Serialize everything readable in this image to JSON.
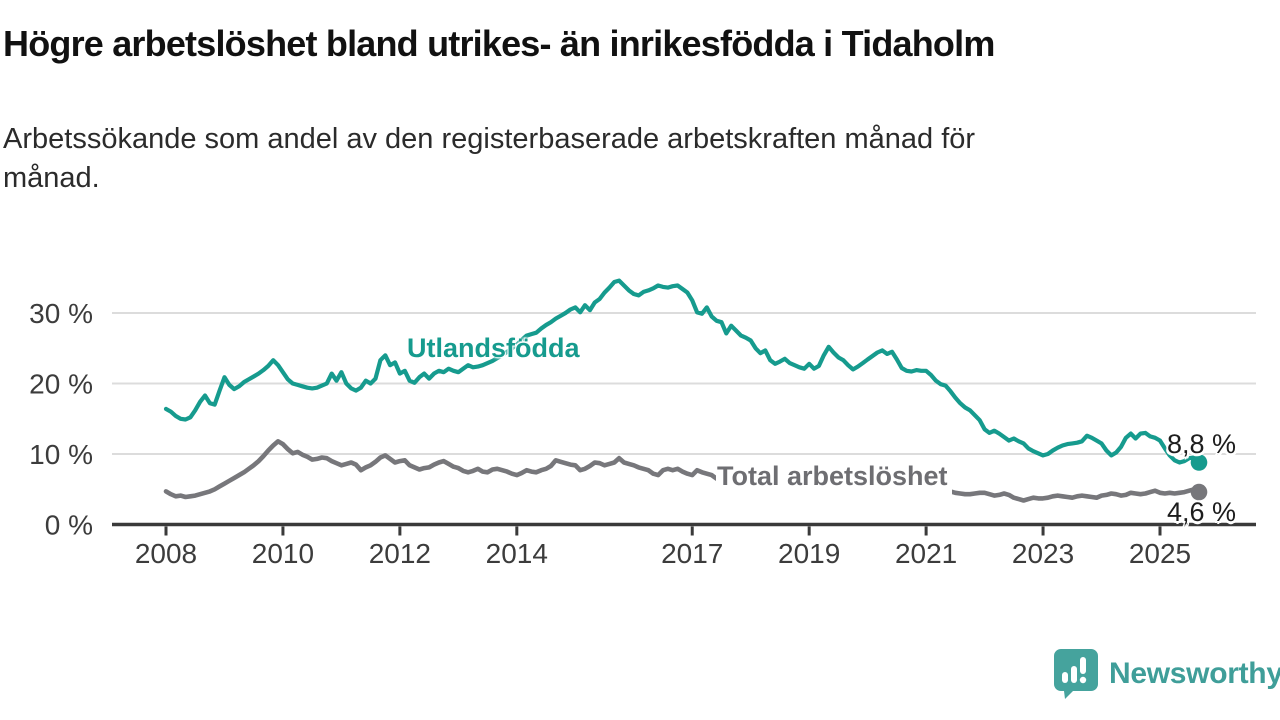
{
  "title": "Högre arbetslöshet bland utrikes- än inrikesfödda i Tidaholm",
  "subtitle_lines": {
    "line1": "Arbetssökande som andel av den registerbaserade arbetskraften månad för",
    "line2": "månad."
  },
  "branding": {
    "logo_text": "Newsworthy",
    "logo_color": "#3f9e99",
    "icon_color": "#45a39d"
  },
  "chart_data": {
    "type": "line",
    "title": "Högre arbetslöshet bland utrikes- än inrikesfödda i Tidaholm",
    "x_axis": {
      "start_year": 2008,
      "unit": "month",
      "tick_years": [
        2008,
        2010,
        2012,
        2014,
        2017,
        2019,
        2021,
        2023,
        2025
      ],
      "tick_labels": [
        "2008",
        "2010",
        "2012",
        "2014",
        "2017",
        "2019",
        "2021",
        "2023",
        "2025"
      ]
    },
    "y_axis": {
      "values": [
        0,
        10,
        20,
        30
      ],
      "tick_labels": [
        "0 %",
        "10 %",
        "20 %",
        "30 %"
      ],
      "ylim": [
        0,
        36
      ],
      "grid": true
    },
    "legend_position": "inline-labels",
    "series": [
      {
        "name": "Utlandsfödda",
        "color": "#169b8e",
        "end_label": "8,8 %",
        "end_value": 8.8,
        "values": [
          16.4,
          16.0,
          15.4,
          15.0,
          14.9,
          15.2,
          16.2,
          17.4,
          18.3,
          17.2,
          17.0,
          19.0,
          20.9,
          19.8,
          19.2,
          19.6,
          20.2,
          20.6,
          21.0,
          21.4,
          21.9,
          22.5,
          23.3,
          22.6,
          21.6,
          20.6,
          20.0,
          19.8,
          19.6,
          19.4,
          19.3,
          19.4,
          19.7,
          20.0,
          21.4,
          20.4,
          21.6,
          20.0,
          19.3,
          19.0,
          19.4,
          20.4,
          20.0,
          20.7,
          23.3,
          24.0,
          22.6,
          23.0,
          21.4,
          21.8,
          20.4,
          20.1,
          20.9,
          21.4,
          20.7,
          21.4,
          21.8,
          21.6,
          22.1,
          21.8,
          21.6,
          22.1,
          22.6,
          22.3,
          22.4,
          22.6,
          22.9,
          23.2,
          23.6,
          24.0,
          24.5,
          25.0,
          25.5,
          26.2,
          26.8,
          27.0,
          27.2,
          27.8,
          28.3,
          28.7,
          29.2,
          29.6,
          30.0,
          30.5,
          30.8,
          30.1,
          31.1,
          30.4,
          31.5,
          32.0,
          32.9,
          33.6,
          34.4,
          34.6,
          33.9,
          33.2,
          32.7,
          32.5,
          33.0,
          33.2,
          33.5,
          33.9,
          33.7,
          33.6,
          33.8,
          33.9,
          33.4,
          32.9,
          31.8,
          30.1,
          29.9,
          30.8,
          29.5,
          28.9,
          28.7,
          27.1,
          28.2,
          27.5,
          26.8,
          26.5,
          26.1,
          25.0,
          24.3,
          24.7,
          23.3,
          22.8,
          23.1,
          23.5,
          22.9,
          22.6,
          22.3,
          22.1,
          22.8,
          22.1,
          22.5,
          24.0,
          25.2,
          24.4,
          23.7,
          23.3,
          22.6,
          22.0,
          22.4,
          22.9,
          23.4,
          23.9,
          24.4,
          24.7,
          24.2,
          24.5,
          23.4,
          22.2,
          21.8,
          21.7,
          21.9,
          21.8,
          21.8,
          21.2,
          20.4,
          19.9,
          19.7,
          18.9,
          18.0,
          17.2,
          16.6,
          16.2,
          15.5,
          14.8,
          13.5,
          13.0,
          13.3,
          12.9,
          12.4,
          11.9,
          12.2,
          11.8,
          11.5,
          10.8,
          10.4,
          10.1,
          9.8,
          10.0,
          10.5,
          10.9,
          11.2,
          11.4,
          11.5,
          11.6,
          11.8,
          12.6,
          12.3,
          11.9,
          11.5,
          10.5,
          9.8,
          10.2,
          11.0,
          12.3,
          12.9,
          12.2,
          12.9,
          13.0,
          12.5,
          12.3,
          11.9,
          10.8,
          9.8,
          9.1,
          8.8,
          9.0,
          9.4,
          9.5,
          8.8
        ]
      },
      {
        "name": "Total arbetslöshet",
        "color": "#77777b",
        "end_label": "4,6 %",
        "end_value": 4.6,
        "values": [
          4.7,
          4.3,
          4.0,
          4.1,
          3.9,
          4.0,
          4.1,
          4.3,
          4.5,
          4.7,
          5.0,
          5.4,
          5.8,
          6.2,
          6.6,
          7.0,
          7.4,
          7.9,
          8.4,
          9.0,
          9.7,
          10.5,
          11.2,
          11.8,
          11.4,
          10.7,
          10.1,
          10.3,
          9.9,
          9.6,
          9.2,
          9.3,
          9.5,
          9.4,
          9.0,
          8.7,
          8.4,
          8.6,
          8.8,
          8.5,
          7.7,
          8.1,
          8.4,
          8.9,
          9.5,
          9.8,
          9.3,
          8.8,
          9.0,
          9.1,
          8.4,
          8.1,
          7.8,
          8.0,
          8.1,
          8.5,
          8.8,
          9.0,
          8.6,
          8.2,
          8.0,
          7.6,
          7.4,
          7.6,
          7.9,
          7.5,
          7.4,
          7.8,
          7.9,
          7.7,
          7.5,
          7.2,
          7.0,
          7.3,
          7.7,
          7.5,
          7.4,
          7.7,
          7.9,
          8.3,
          9.1,
          8.9,
          8.7,
          8.5,
          8.4,
          7.7,
          7.9,
          8.3,
          8.8,
          8.7,
          8.4,
          8.6,
          8.8,
          9.4,
          8.8,
          8.6,
          8.4,
          8.1,
          7.9,
          7.7,
          7.2,
          7.0,
          7.7,
          7.9,
          7.7,
          7.9,
          7.5,
          7.2,
          7.0,
          7.7,
          7.4,
          7.2,
          7.0,
          6.5,
          6.6,
          6.8,
          6.5,
          6.3,
          6.2,
          6.1,
          6.0,
          5.9,
          5.8,
          5.7,
          5.6,
          5.5,
          5.5,
          5.4,
          5.4,
          5.3,
          5.3,
          5.2,
          5.2,
          5.1,
          5.1,
          5.2,
          5.3,
          5.2,
          5.1,
          5.0,
          5.0,
          5.1,
          5.2,
          5.3,
          5.4,
          5.5,
          5.9,
          6.4,
          6.7,
          6.9,
          7.0,
          6.9,
          6.7,
          6.4,
          6.1,
          5.9,
          5.7,
          5.5,
          5.3,
          5.1,
          4.9,
          4.7,
          4.5,
          4.4,
          4.3,
          4.3,
          4.4,
          4.5,
          4.5,
          4.3,
          4.1,
          4.2,
          4.4,
          4.2,
          3.8,
          3.6,
          3.4,
          3.6,
          3.8,
          3.7,
          3.7,
          3.8,
          4.0,
          4.1,
          4.0,
          3.9,
          3.8,
          4.0,
          4.1,
          4.0,
          3.9,
          3.8,
          4.1,
          4.2,
          4.4,
          4.3,
          4.1,
          4.2,
          4.5,
          4.4,
          4.3,
          4.4,
          4.6,
          4.8,
          4.5,
          4.4,
          4.5,
          4.4,
          4.5,
          4.6,
          4.8,
          5.0,
          4.6
        ]
      }
    ]
  }
}
